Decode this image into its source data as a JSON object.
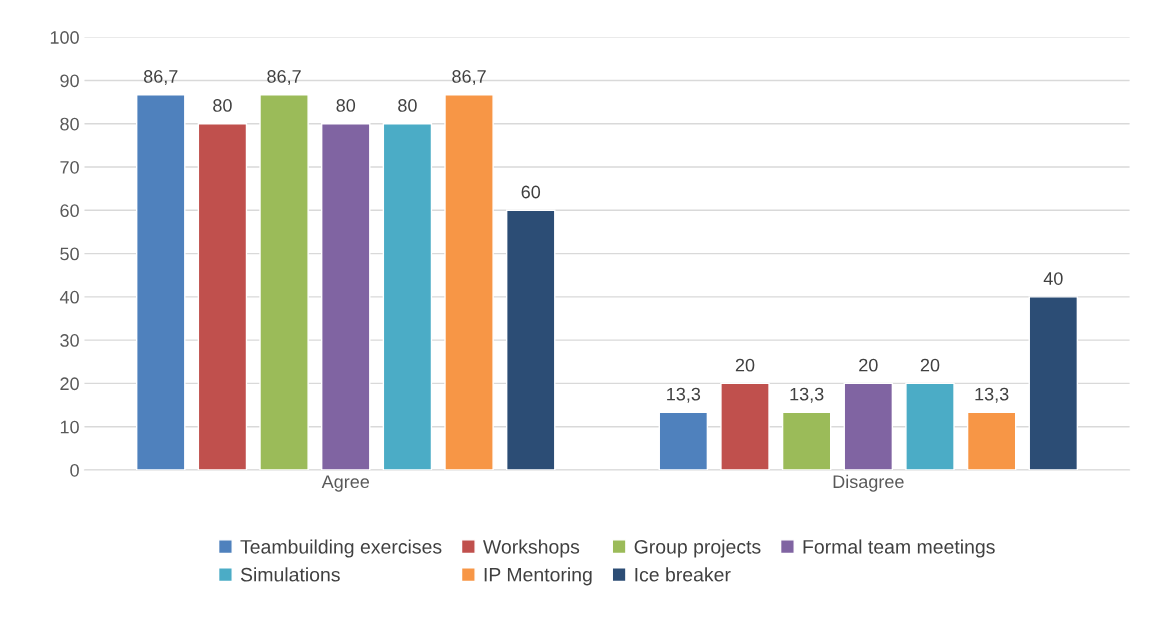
{
  "chart_data": {
    "type": "bar",
    "categories": [
      "Agree",
      "Disagree"
    ],
    "series": [
      {
        "name": "Teambuilding exercises",
        "color": "#4f81bd",
        "values": [
          86.7,
          13.3
        ],
        "value_labels": [
          "86,7",
          "13,3"
        ]
      },
      {
        "name": "Workshops",
        "color": "#c0504d",
        "values": [
          80,
          20
        ],
        "value_labels": [
          "80",
          "20"
        ]
      },
      {
        "name": "Group projects",
        "color": "#9bbb59",
        "values": [
          86.7,
          13.3
        ],
        "value_labels": [
          "86,7",
          "13,3"
        ]
      },
      {
        "name": "Formal team meetings",
        "color": "#8064a2",
        "values": [
          80,
          20
        ],
        "value_labels": [
          "80",
          "20"
        ]
      },
      {
        "name": "Simulations",
        "color": "#4bacc6",
        "values": [
          80,
          20
        ],
        "value_labels": [
          "80",
          "20"
        ]
      },
      {
        "name": "IP Mentoring",
        "color": "#f79646",
        "values": [
          86.7,
          13.3
        ],
        "value_labels": [
          "86,7",
          "13,3"
        ]
      },
      {
        "name": "Ice breaker",
        "color": "#2c4d75",
        "values": [
          60,
          40
        ],
        "value_labels": [
          "60",
          "40"
        ]
      }
    ],
    "ylim": [
      0,
      100
    ],
    "yticks": [
      0,
      10,
      20,
      30,
      40,
      50,
      60,
      70,
      80,
      90,
      100
    ],
    "grid": "y",
    "legend": "bottom"
  }
}
